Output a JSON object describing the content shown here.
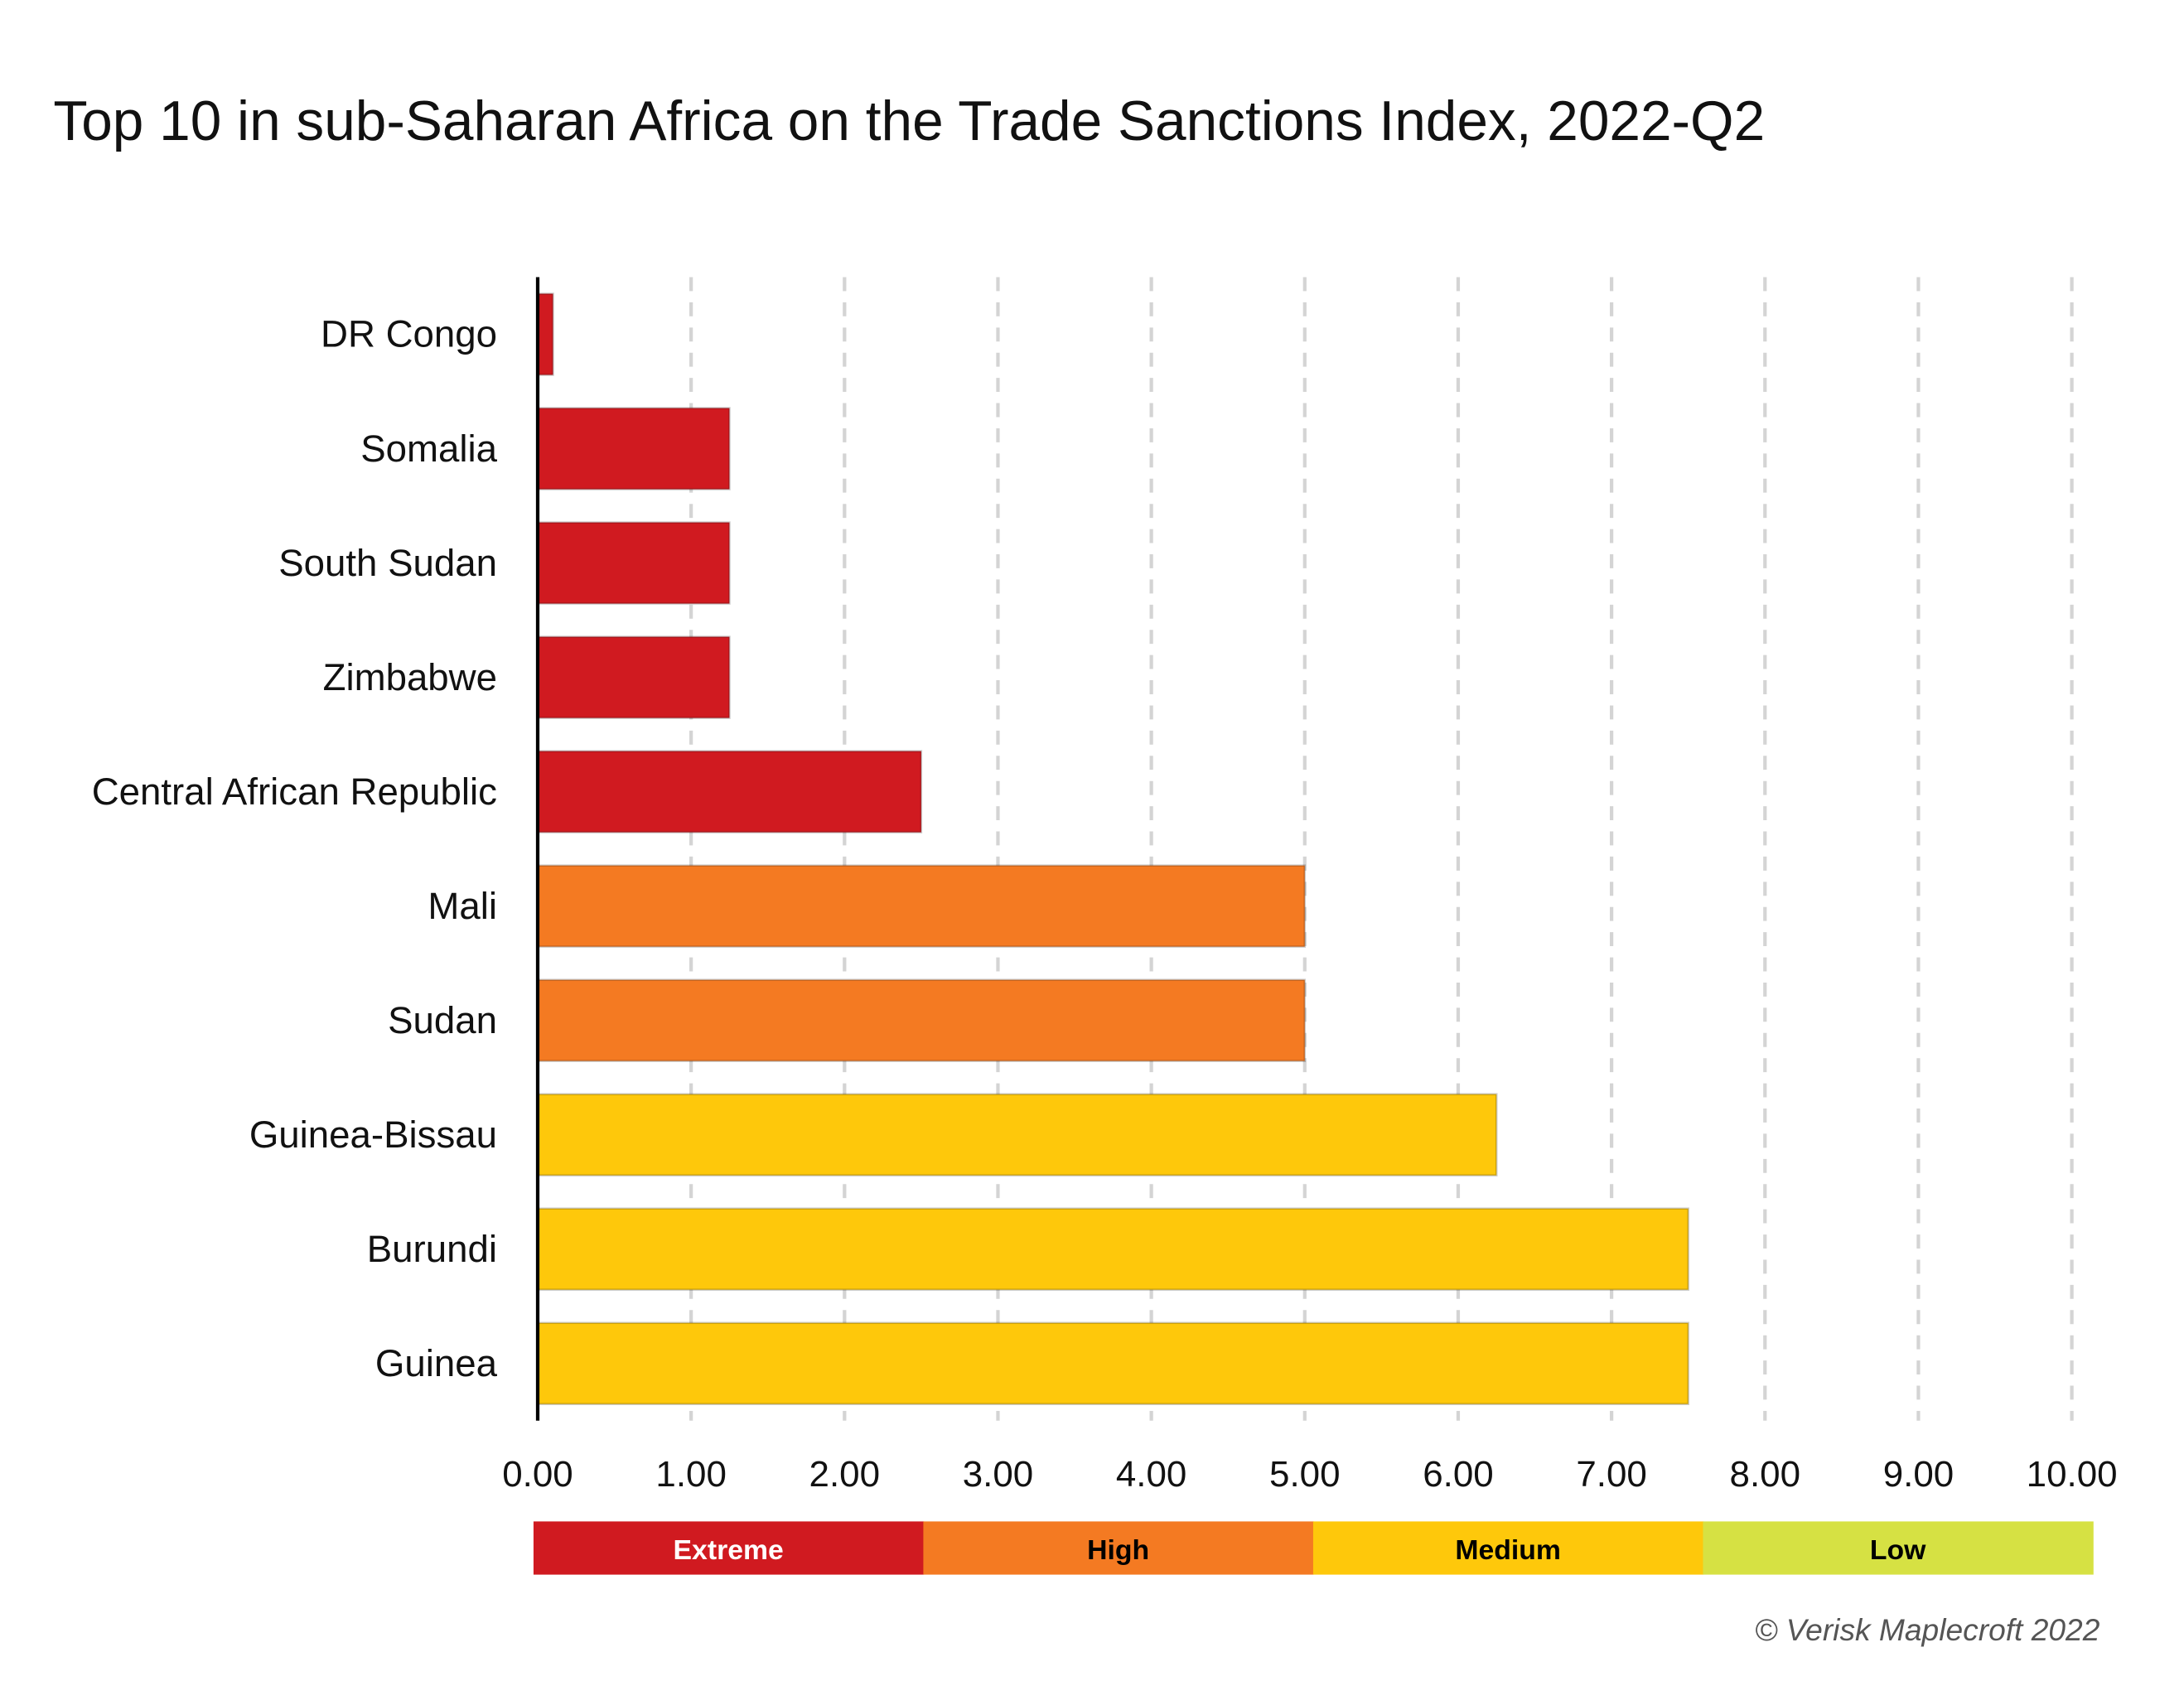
{
  "chart_data": {
    "type": "bar",
    "orientation": "horizontal",
    "title": "Top 10 in sub-Saharan Africa on the Trade Sanctions Index, 2022-Q2",
    "categories": [
      "DR Congo",
      "Somalia",
      "South Sudan",
      "Zimbabwe",
      "Central African Republic",
      "Mali",
      "Sudan",
      "Guinea-Bissau",
      "Burundi",
      "Guinea"
    ],
    "values": [
      0.1,
      1.25,
      1.25,
      1.25,
      2.5,
      5.0,
      5.0,
      6.25,
      7.5,
      7.5
    ],
    "bar_colors": [
      "#d01a20",
      "#d01a20",
      "#d01a20",
      "#d01a20",
      "#d01a20",
      "#f47a22",
      "#f47a22",
      "#fec80b",
      "#fec80b",
      "#fec80b"
    ],
    "xlim": [
      0,
      10
    ],
    "xticks": [
      "0.00",
      "1.00",
      "2.00",
      "3.00",
      "4.00",
      "5.00",
      "6.00",
      "7.00",
      "8.00",
      "9.00",
      "10.00"
    ],
    "grid": "vertical dashed",
    "risk_legend": [
      {
        "label": "Extreme",
        "color": "#d01a20",
        "text_color": "#ffffff"
      },
      {
        "label": "High",
        "color": "#f47a22",
        "text_color": "#000000"
      },
      {
        "label": "Medium",
        "color": "#fec80b",
        "text_color": "#000000"
      },
      {
        "label": "Low",
        "color": "#d6e143",
        "text_color": "#000000"
      }
    ],
    "legend_placement": "bottom",
    "credit": "© Verisk Maplecroft 2022"
  }
}
